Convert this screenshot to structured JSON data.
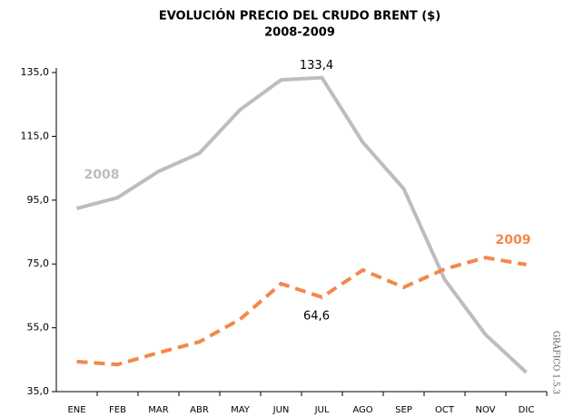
{
  "chart_data": {
    "type": "line",
    "title": "EVOLUCIÓN PRECIO DEL CRUDO BRENT ($)",
    "subtitle": "2008-2009",
    "side_label": "GRÁFICO 1.5.3",
    "categories": [
      "ENE",
      "FEB",
      "MAR",
      "ABR",
      "MAY",
      "JUN",
      "JUL",
      "AGO",
      "SEP",
      "OCT",
      "NOV",
      "DIC"
    ],
    "series": [
      {
        "name": "2008",
        "color": "#bdbdbd",
        "dashed": false,
        "values": [
          92.4,
          95.8,
          104.0,
          109.7,
          123.4,
          132.7,
          133.4,
          113.1,
          98.6,
          70.2,
          52.9,
          41.0
        ],
        "value_labels": [
          null,
          null,
          null,
          null,
          null,
          null,
          "133,4",
          null,
          null,
          null,
          null,
          null
        ]
      },
      {
        "name": "2009",
        "color": "#f4874b",
        "dashed": true,
        "values": [
          44.4,
          43.5,
          47.2,
          50.6,
          57.7,
          68.8,
          64.6,
          73.1,
          67.7,
          73.4,
          77.0,
          74.8
        ],
        "value_labels": [
          null,
          null,
          null,
          null,
          null,
          null,
          "64,6",
          null,
          null,
          null,
          null,
          null
        ]
      }
    ],
    "ylim": [
      35,
      135
    ],
    "yticks": [
      {
        "value": 35,
        "label": "35,0"
      },
      {
        "value": 55,
        "label": "55,0"
      },
      {
        "value": 75,
        "label": "75,0"
      },
      {
        "value": 95,
        "label": "95,0"
      },
      {
        "value": 115,
        "label": "115,0"
      },
      {
        "value": 135,
        "label": "135,0"
      }
    ],
    "grid": false
  }
}
